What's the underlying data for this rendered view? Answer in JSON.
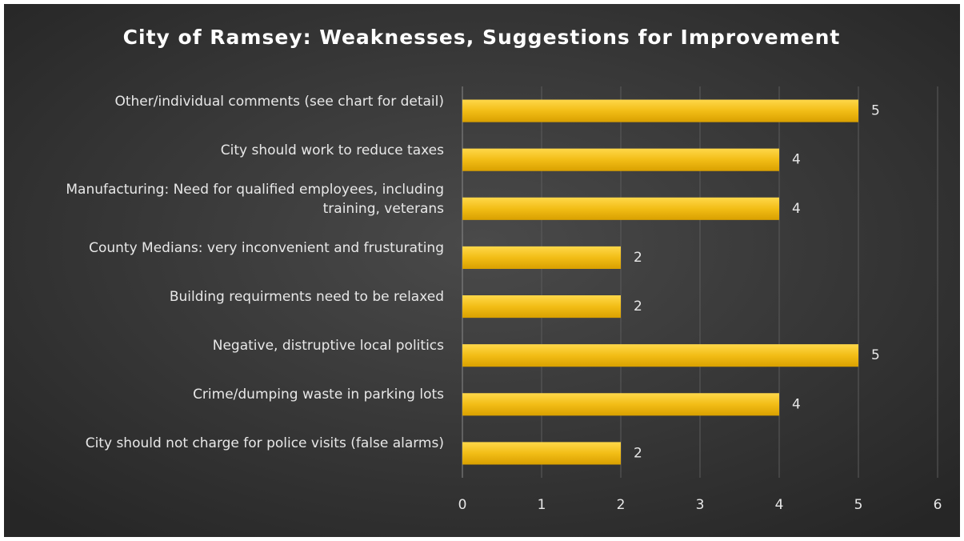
{
  "chart_data": {
    "type": "bar",
    "orientation": "horizontal",
    "title": "City of Ramsey: Weaknesses, Suggestions for Improvement",
    "categories": [
      "Other/individual comments (see chart for detail)",
      "City should work to reduce taxes",
      "Manufacturing: Need for qualified employees, including training, veterans",
      "County Medians: very inconvenient and frusturating",
      "Building requirments need to be relaxed",
      "Negative, distruptive local politics",
      "Crime/dumping waste in parking lots",
      "City should not charge for police visits (false alarms)"
    ],
    "values": [
      5,
      4,
      4,
      2,
      2,
      5,
      4,
      2
    ],
    "color": "#f2bd16",
    "xlim": [
      0,
      6
    ],
    "xticks": [
      0,
      1,
      2,
      3,
      4,
      5,
      6
    ],
    "grid": true
  }
}
